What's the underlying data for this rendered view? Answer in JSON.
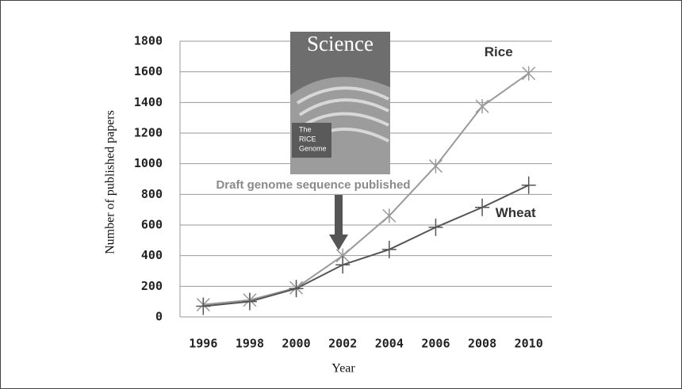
{
  "chart_data": {
    "type": "line",
    "x_label": "Year",
    "y_label": "Number of published papers",
    "categories": [
      "1996",
      "1998",
      "2000",
      "2002",
      "2004",
      "2006",
      "2008",
      "2010"
    ],
    "series": [
      {
        "name": "Rice",
        "color": "#9a9a9a",
        "marker": "star",
        "values": [
          80,
          110,
          190,
          400,
          660,
          985,
          1375,
          1590
        ]
      },
      {
        "name": "Wheat",
        "color": "#555555",
        "marker": "plus",
        "values": [
          70,
          100,
          185,
          340,
          440,
          585,
          715,
          860
        ]
      }
    ],
    "ylim": [
      0,
      1800
    ],
    "yticks": [
      0,
      200,
      400,
      600,
      800,
      1000,
      1200,
      1400,
      1600,
      1800
    ],
    "grid": true,
    "annotation": "Draft genome sequence published",
    "cover": {
      "title": "Science",
      "caption": [
        "The",
        "RICE",
        "Genome"
      ]
    }
  }
}
